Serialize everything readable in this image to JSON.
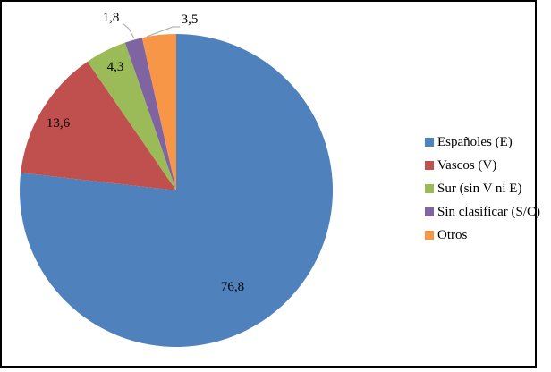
{
  "chart_data": {
    "type": "pie",
    "title": "",
    "categories": [
      "Españoles (E)",
      "Vascos (V)",
      "Sur (sin V ni E)",
      "Sin clasificar (S/C)",
      "Otros"
    ],
    "values": [
      76.8,
      13.6,
      4.3,
      1.8,
      3.5
    ],
    "value_labels": [
      "76,8",
      "13,6",
      "4,3",
      "1,8",
      "3,5"
    ],
    "colors": [
      "#4f81bd",
      "#c0504d",
      "#9bbb59",
      "#8064a2",
      "#f79646"
    ],
    "label_color": "#000000",
    "leader_line_color": "#a6a6a6",
    "frame_border_color": "#000000",
    "background": "#ffffff",
    "legend_position": "right",
    "start_angle": 0,
    "direction": "clockwise"
  }
}
